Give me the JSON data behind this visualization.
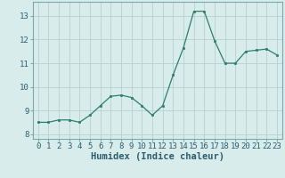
{
  "x": [
    0,
    1,
    2,
    3,
    4,
    5,
    6,
    7,
    8,
    9,
    10,
    11,
    12,
    13,
    14,
    15,
    16,
    17,
    18,
    19,
    20,
    21,
    22,
    23
  ],
  "y": [
    8.5,
    8.5,
    8.6,
    8.6,
    8.5,
    8.8,
    9.2,
    9.6,
    9.65,
    9.55,
    9.2,
    8.8,
    9.2,
    10.5,
    11.65,
    13.2,
    13.2,
    11.95,
    11.0,
    11.0,
    11.5,
    11.55,
    11.6,
    11.35
  ],
  "xlabel": "Humidex (Indice chaleur)",
  "ylim": [
    7.8,
    13.6
  ],
  "xlim": [
    -0.5,
    23.5
  ],
  "yticks": [
    8,
    9,
    10,
    11,
    12,
    13
  ],
  "xticks": [
    0,
    1,
    2,
    3,
    4,
    5,
    6,
    7,
    8,
    9,
    10,
    11,
    12,
    13,
    14,
    15,
    16,
    17,
    18,
    19,
    20,
    21,
    22,
    23
  ],
  "line_color": "#2d7d6f",
  "marker_color": "#2d7d6f",
  "bg_color": "#d8ecec",
  "grid_color": "#b8d0d0",
  "tick_fontsize": 6.5,
  "xlabel_fontsize": 7.5
}
